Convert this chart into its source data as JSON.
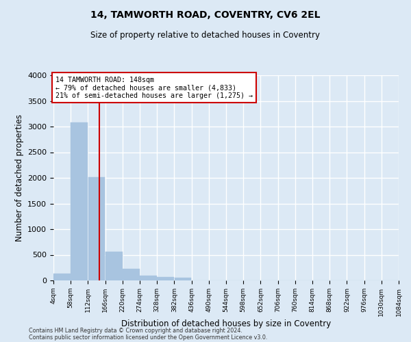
{
  "title1": "14, TAMWORTH ROAD, COVENTRY, CV6 2EL",
  "title2": "Size of property relative to detached houses in Coventry",
  "xlabel": "Distribution of detached houses by size in Coventry",
  "ylabel": "Number of detached properties",
  "footnote1": "Contains HM Land Registry data © Crown copyright and database right 2024.",
  "footnote2": "Contains public sector information licensed under the Open Government Licence v3.0.",
  "annotation_line1": "14 TAMWORTH ROAD: 148sqm",
  "annotation_line2": "← 79% of detached houses are smaller (4,833)",
  "annotation_line3": "21% of semi-detached houses are larger (1,275) →",
  "bar_color": "#a8c4e0",
  "vline_color": "#cc0000",
  "vline_x": 148,
  "bin_start": 4,
  "bin_width": 54,
  "num_bins": 20,
  "bar_heights": [
    130,
    3080,
    2020,
    560,
    230,
    100,
    70,
    50,
    0,
    0,
    0,
    0,
    0,
    0,
    0,
    0,
    0,
    0,
    0,
    0
  ],
  "xlim_min": 4,
  "xlim_max": 1084,
  "ylim_min": 0,
  "ylim_max": 4000,
  "yticks": [
    0,
    500,
    1000,
    1500,
    2000,
    2500,
    3000,
    3500,
    4000
  ],
  "xtick_labels": [
    "4sqm",
    "58sqm",
    "112sqm",
    "166sqm",
    "220sqm",
    "274sqm",
    "328sqm",
    "382sqm",
    "436sqm",
    "490sqm",
    "544sqm",
    "598sqm",
    "652sqm",
    "706sqm",
    "760sqm",
    "814sqm",
    "868sqm",
    "922sqm",
    "976sqm",
    "1030sqm",
    "1084sqm"
  ],
  "background_color": "#dce9f5",
  "grid_color": "#ffffff",
  "annotation_box_color": "#ffffff",
  "annotation_box_edge_color": "#cc0000"
}
